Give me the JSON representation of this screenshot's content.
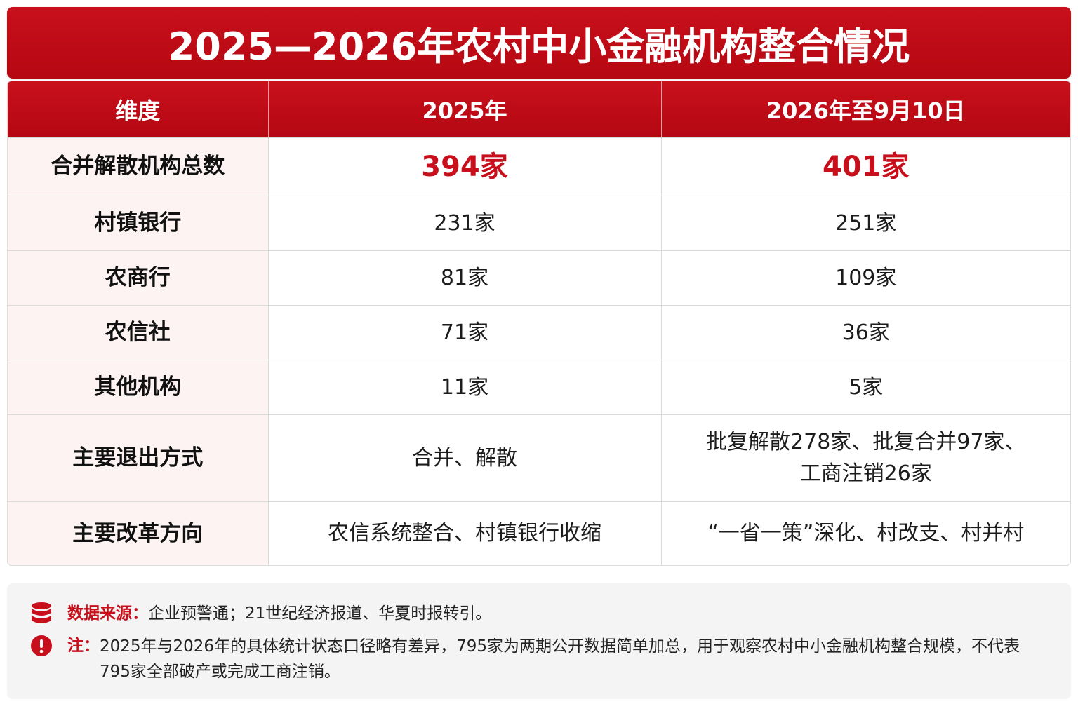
{
  "title": "2025—2026年农村中小金融机构整合情况",
  "table": {
    "headers": [
      "维度",
      "2025年",
      "2026年至9月10日"
    ],
    "rows": [
      {
        "dimension": "合并解散机构总数",
        "y2025": "394家",
        "y2026": "401家"
      },
      {
        "dimension": "村镇银行",
        "y2025": "231家",
        "y2026": "251家"
      },
      {
        "dimension": "农商行",
        "y2025": "81家",
        "y2026": "109家"
      },
      {
        "dimension": "农信社",
        "y2025": "71家",
        "y2026": "36家"
      },
      {
        "dimension": "其他机构",
        "y2025": "11家",
        "y2026": "5家"
      },
      {
        "dimension": "主要退出方式",
        "y2025": "合并、解散",
        "y2026_line1": "批复解散278家、批复合并97家、",
        "y2026_line2": "工商注销26家"
      },
      {
        "dimension": "主要改革方向",
        "y2025": "农信系统整合、村镇银行收缩",
        "y2026": "“一省一策”深化、村改支、村并村"
      }
    ]
  },
  "notes": {
    "source_label": "数据来源：",
    "source_text": "企业预警通；21世纪经济报道、华夏时报转引。",
    "remark_label": "注：",
    "remark_text": "2025年与2026年的具体统计状态口径略有差异，795家为两期公开数据简单加总，用于观察农村中小金融机构整合规模，不代表795家全部破产或完成工商注销。"
  },
  "colors": {
    "accent_red": "#c8101c",
    "dimension_bg": "#fdf3f3",
    "notes_bg": "#f4f4f4"
  },
  "icons": {
    "source": "database-icon",
    "remark": "exclamation-circle-icon"
  }
}
